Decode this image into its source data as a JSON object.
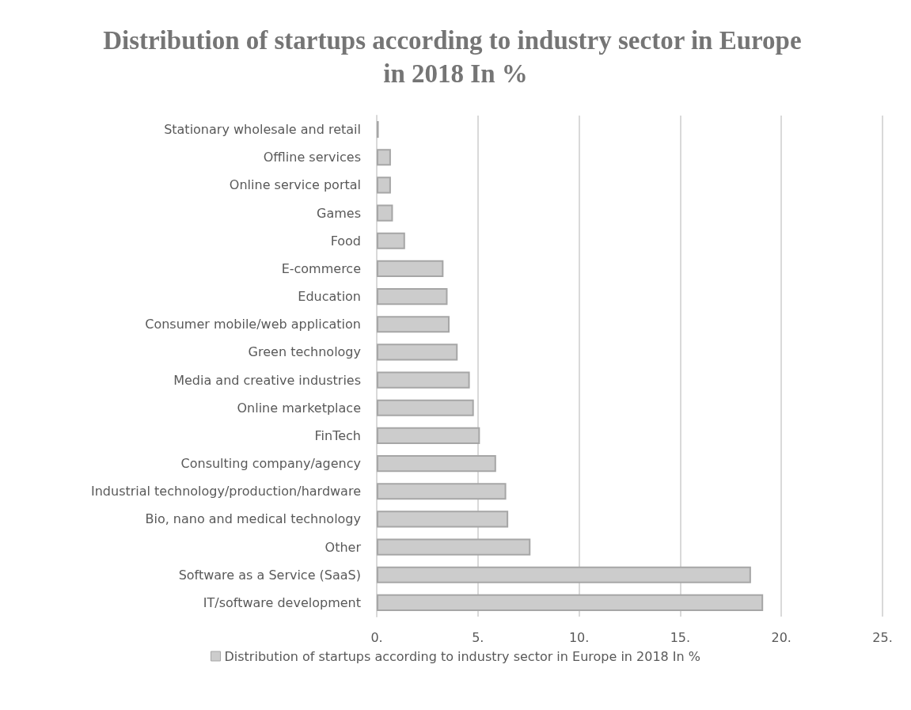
{
  "chart_data": {
    "type": "bar",
    "orientation": "horizontal",
    "title": "Distribution of startups according to industry sector in Europe in 2018 In %",
    "categories": [
      "Stationary wholesale and retail",
      "Offline services",
      "Online service portal",
      "Games",
      "Food",
      "E-commerce",
      "Education",
      "Consumer mobile/web application",
      "Green technology",
      "Media and creative industries",
      "Online marketplace",
      "FinTech",
      "Consulting company/agency",
      "Industrial technology/production/hardware",
      "Bio, nano and medical technology",
      "Other",
      "Software as a Service (SaaS)",
      "IT/software development"
    ],
    "series": [
      {
        "name": "Distribution of startups according to industry sector in Europe in 2018 In %",
        "color": "#cccccc",
        "values": [
          0.1,
          0.7,
          0.7,
          0.8,
          1.4,
          3.3,
          3.5,
          3.6,
          4.0,
          4.6,
          4.8,
          5.1,
          5.9,
          6.4,
          6.5,
          7.6,
          18.5,
          19.1
        ]
      }
    ],
    "xlim": [
      0,
      25
    ],
    "xticks": [
      {
        "value": 0,
        "label": "0."
      },
      {
        "value": 5,
        "label": "5."
      },
      {
        "value": 10,
        "label": "10."
      },
      {
        "value": 15,
        "label": "15."
      },
      {
        "value": 20,
        "label": "20."
      },
      {
        "value": 25,
        "label": "25."
      }
    ],
    "grid": "x",
    "legend": "bottom"
  }
}
